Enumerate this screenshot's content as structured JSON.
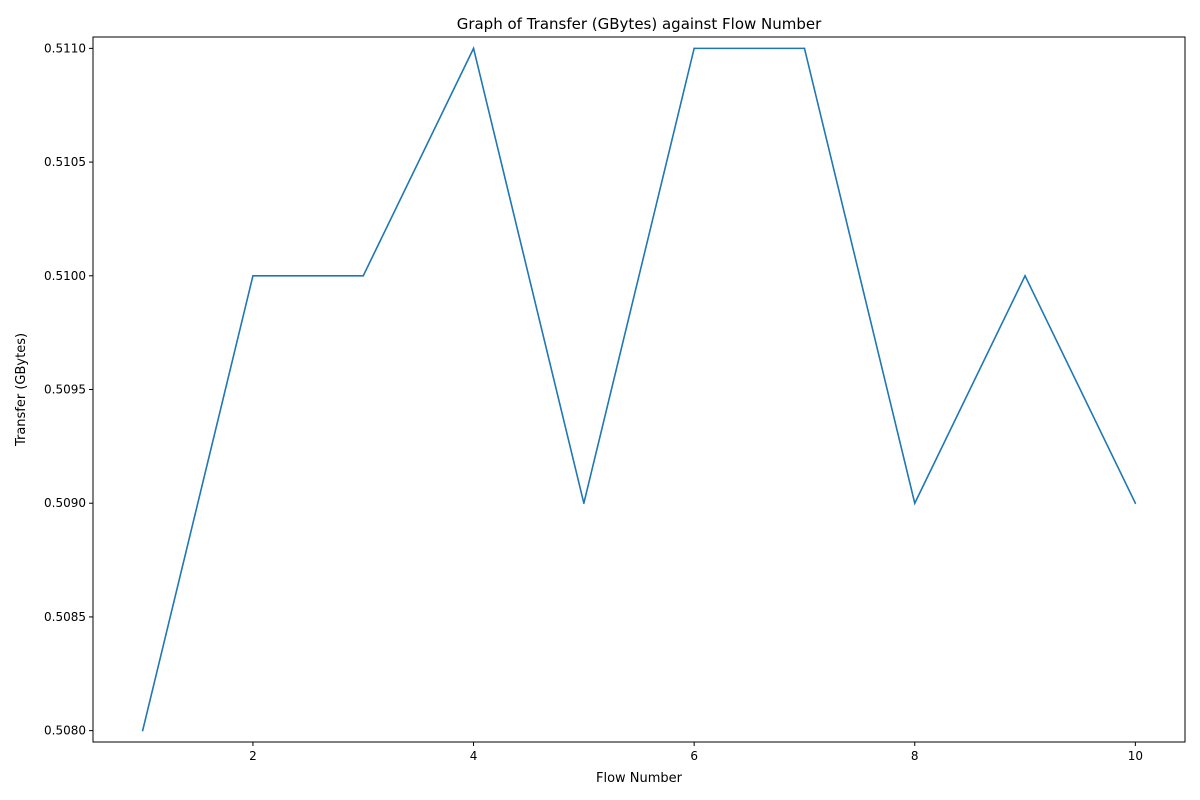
{
  "chart_data": {
    "type": "line",
    "title": "Graph of Transfer (GBytes) against Flow Number",
    "xlabel": "Flow Number",
    "ylabel": "Transfer (GBytes)",
    "x": [
      1,
      2,
      3,
      4,
      5,
      6,
      7,
      8,
      9,
      10
    ],
    "series": [
      {
        "values": [
          0.508,
          0.51,
          0.51,
          0.511,
          0.509,
          0.511,
          0.511,
          0.509,
          0.51,
          0.509
        ],
        "color": "#1f77b4"
      }
    ],
    "xlim": [
      0.55,
      10.45
    ],
    "ylim": [
      0.50795,
      0.51105
    ],
    "xticks": [
      2,
      4,
      6,
      8,
      10
    ],
    "xtick_labels": [
      "2",
      "4",
      "6",
      "8",
      "10"
    ],
    "yticks": [
      0.508,
      0.5085,
      0.509,
      0.5095,
      0.51,
      0.5105,
      0.511
    ],
    "ytick_labels": [
      "0.5080",
      "0.5085",
      "0.5090",
      "0.5095",
      "0.5100",
      "0.5105",
      "0.5110"
    ],
    "grid": false,
    "legend": "none"
  }
}
